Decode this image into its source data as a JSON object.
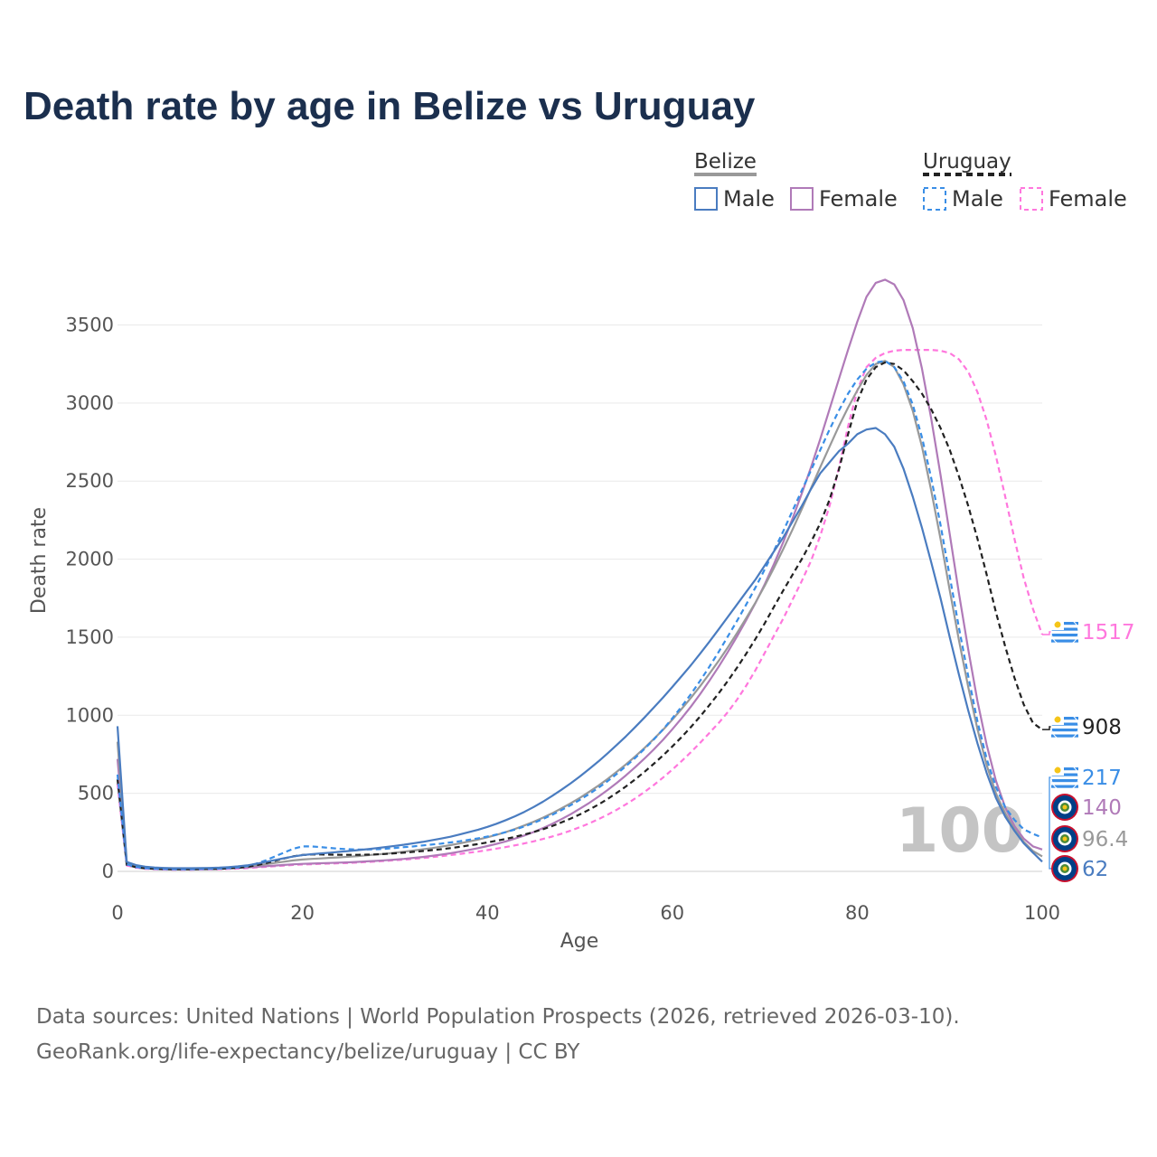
{
  "title": "Death rate by age in Belize vs Uruguay",
  "legend": {
    "groups": [
      {
        "name": "Belize",
        "color": "#999999",
        "dash": false,
        "items": [
          "Male",
          "Female"
        ]
      },
      {
        "name": "Uruguay",
        "color": "#222222",
        "dash": true,
        "items": [
          "Male",
          "Female"
        ]
      }
    ]
  },
  "age_marker": "100",
  "source_line1": "Data sources: United Nations | World Population Prospects (2026, retrieved 2026-03-10).",
  "source_line2": "GeoRank.org/life-expectancy/belize/uruguay | CC BY",
  "chart_data": {
    "type": "line",
    "title": "Death rate by age in Belize vs Uruguay",
    "xlabel": "Age",
    "ylabel": "Death rate",
    "xlim": [
      0,
      100
    ],
    "ylim": [
      0,
      3800
    ],
    "xticks": [
      0,
      20,
      40,
      60,
      80,
      100
    ],
    "yticks": [
      0,
      500,
      1000,
      1500,
      2000,
      2500,
      3000,
      3500
    ],
    "grid": true,
    "x": [
      0,
      1,
      2,
      3,
      4,
      5,
      6,
      7,
      8,
      9,
      10,
      11,
      12,
      13,
      14,
      15,
      16,
      17,
      18,
      19,
      20,
      21,
      22,
      23,
      24,
      25,
      26,
      27,
      28,
      29,
      30,
      31,
      32,
      33,
      34,
      35,
      36,
      37,
      38,
      39,
      40,
      41,
      42,
      43,
      44,
      45,
      46,
      47,
      48,
      49,
      50,
      51,
      52,
      53,
      54,
      55,
      56,
      57,
      58,
      59,
      60,
      61,
      62,
      63,
      64,
      65,
      66,
      67,
      68,
      69,
      70,
      71,
      72,
      73,
      74,
      75,
      76,
      77,
      78,
      79,
      80,
      81,
      82,
      83,
      84,
      85,
      86,
      87,
      88,
      89,
      90,
      91,
      92,
      93,
      94,
      95,
      96,
      97,
      98,
      99,
      100
    ],
    "series": [
      {
        "name": "Belize Male",
        "country": "Belize",
        "sex": "Male",
        "color": "#4a7cc0",
        "dash": false,
        "end_value": "62",
        "values": [
          930,
          60,
          40,
          30,
          25,
          22,
          20,
          20,
          20,
          21,
          22,
          24,
          27,
          32,
          38,
          48,
          60,
          72,
          84,
          95,
          104,
          110,
          115,
          120,
          125,
          130,
          136,
          142,
          149,
          156,
          163,
          171,
          180,
          189,
          199,
          210,
          222,
          236,
          251,
          267,
          285,
          305,
          328,
          353,
          381,
          412,
          446,
          483,
          522,
          564,
          608,
          655,
          704,
          756,
          810,
          866,
          925,
          986,
          1049,
          1114,
          1181,
          1250,
          1320,
          1394,
          1470,
          1550,
          1630,
          1710,
          1790,
          1870,
          1960,
          2050,
          2140,
          2240,
          2340,
          2450,
          2550,
          2620,
          2690,
          2740,
          2800,
          2830,
          2840,
          2800,
          2720,
          2580,
          2400,
          2200,
          1980,
          1750,
          1500,
          1260,
          1030,
          820,
          630,
          470,
          350,
          260,
          180,
          120,
          62
        ]
      },
      {
        "name": "Belize Female",
        "country": "Belize",
        "sex": "Female",
        "color": "#b07ab8",
        "dash": false,
        "end_value": "140",
        "values": [
          720,
          50,
          32,
          24,
          20,
          17,
          16,
          15,
          15,
          16,
          17,
          18,
          20,
          22,
          25,
          29,
          33,
          37,
          41,
          45,
          48,
          50,
          52,
          54,
          56,
          58,
          61,
          64,
          67,
          71,
          75,
          80,
          86,
          92,
          99,
          107,
          116,
          126,
          137,
          149,
          162,
          176,
          192,
          210,
          230,
          252,
          277,
          304,
          334,
          366,
          401,
          438,
          478,
          521,
          567,
          616,
          668,
          723,
          781,
          843,
          910,
          980,
          1055,
          1135,
          1220,
          1310,
          1405,
          1505,
          1610,
          1720,
          1840,
          1970,
          2110,
          2260,
          2420,
          2590,
          2770,
          2960,
          3150,
          3340,
          3520,
          3680,
          3770,
          3790,
          3760,
          3660,
          3480,
          3220,
          2900,
          2540,
          2160,
          1780,
          1420,
          1090,
          810,
          580,
          410,
          290,
          210,
          160,
          140
        ]
      },
      {
        "name": "Uruguay Male",
        "country": "Uruguay",
        "sex": "Male",
        "color": "#3a8ee6",
        "dash": true,
        "end_value": "217",
        "values": [
          620,
          45,
          28,
          20,
          17,
          15,
          14,
          14,
          14,
          15,
          16,
          18,
          21,
          26,
          35,
          50,
          70,
          95,
          120,
          145,
          160,
          160,
          155,
          150,
          145,
          142,
          140,
          140,
          142,
          145,
          150,
          155,
          160,
          166,
          172,
          178,
          185,
          193,
          202,
          212,
          223,
          236,
          251,
          268,
          288,
          310,
          335,
          362,
          392,
          424,
          458,
          495,
          535,
          578,
          625,
          675,
          728,
          785,
          845,
          910,
          980,
          1055,
          1135,
          1220,
          1310,
          1405,
          1505,
          1605,
          1710,
          1820,
          1935,
          2055,
          2180,
          2310,
          2440,
          2570,
          2700,
          2830,
          2950,
          3060,
          3150,
          3220,
          3260,
          3270,
          3230,
          3140,
          2990,
          2780,
          2520,
          2220,
          1890,
          1560,
          1250,
          960,
          720,
          540,
          410,
          330,
          270,
          240,
          217
        ]
      },
      {
        "name": "Uruguay Female",
        "country": "Uruguay",
        "sex": "Female",
        "color": "#ff77dd",
        "dash": true,
        "end_value": "1517",
        "values": [
          560,
          38,
          24,
          17,
          14,
          12,
          11,
          11,
          11,
          12,
          13,
          14,
          16,
          18,
          21,
          25,
          29,
          33,
          37,
          41,
          44,
          46,
          48,
          50,
          52,
          54,
          57,
          60,
          63,
          67,
          71,
          75,
          80,
          85,
          91,
          97,
          104,
          111,
          119,
          127,
          136,
          146,
          156,
          167,
          179,
          192,
          207,
          223,
          241,
          261,
          283,
          307,
          334,
          363,
          395,
          430,
          468,
          509,
          553,
          601,
          652,
          706,
          763,
          823,
          886,
          950,
          1020,
          1100,
          1190,
          1290,
          1400,
          1510,
          1620,
          1740,
          1860,
          1990,
          2150,
          2340,
          2580,
          2850,
          3080,
          3230,
          3290,
          3320,
          3335,
          3340,
          3340,
          3340,
          3340,
          3335,
          3320,
          3280,
          3200,
          3070,
          2890,
          2660,
          2400,
          2130,
          1880,
          1680,
          1517
        ]
      },
      {
        "name": "Belize",
        "country": "Belize",
        "sex": "Both",
        "color": "#999999",
        "dash": false,
        "end_value": "96.4",
        "values": [
          830,
          55,
          36,
          27,
          22,
          19,
          18,
          17,
          17,
          18,
          19,
          21,
          23,
          27,
          31,
          38,
          46,
          54,
          62,
          70,
          76,
          80,
          83,
          87,
          90,
          94,
          98,
          103,
          108,
          113,
          119,
          126,
          133,
          141,
          149,
          158,
          168,
          179,
          191,
          204,
          218,
          234,
          252,
          272,
          294,
          318,
          344,
          372,
          403,
          436,
          471,
          509,
          549,
          592,
          638,
          686,
          737,
          791,
          848,
          908,
          972,
          1040,
          1111,
          1186,
          1265,
          1348,
          1435,
          1527,
          1623,
          1723,
          1830,
          1945,
          2065,
          2190,
          2320,
          2455,
          2590,
          2720,
          2850,
          2970,
          3080,
          3180,
          3250,
          3270,
          3230,
          3120,
          2950,
          2720,
          2440,
          2130,
          1800,
          1480,
          1180,
          910,
          680,
          500,
          370,
          270,
          190,
          130,
          96.4
        ]
      },
      {
        "name": "Uruguay",
        "country": "Uruguay",
        "sex": "Both",
        "color": "#222222",
        "dash": true,
        "end_value": "908",
        "values": [
          590,
          42,
          26,
          19,
          16,
          14,
          13,
          13,
          13,
          14,
          15,
          16,
          19,
          23,
          29,
          39,
          52,
          67,
          82,
          96,
          105,
          108,
          108,
          107,
          106,
          106,
          106,
          107,
          109,
          112,
          116,
          120,
          125,
          130,
          136,
          142,
          149,
          157,
          166,
          175,
          185,
          196,
          208,
          221,
          236,
          252,
          270,
          290,
          313,
          338,
          365,
          395,
          428,
          464,
          503,
          545,
          590,
          638,
          689,
          743,
          800,
          860,
          924,
          992,
          1064,
          1140,
          1220,
          1305,
          1395,
          1490,
          1590,
          1695,
          1800,
          1900,
          2000,
          2110,
          2230,
          2380,
          2570,
          2800,
          3010,
          3150,
          3230,
          3260,
          3250,
          3210,
          3140,
          3060,
          2960,
          2840,
          2700,
          2530,
          2340,
          2130,
          1900,
          1660,
          1440,
          1240,
          1070,
          950,
          908
        ]
      }
    ]
  }
}
